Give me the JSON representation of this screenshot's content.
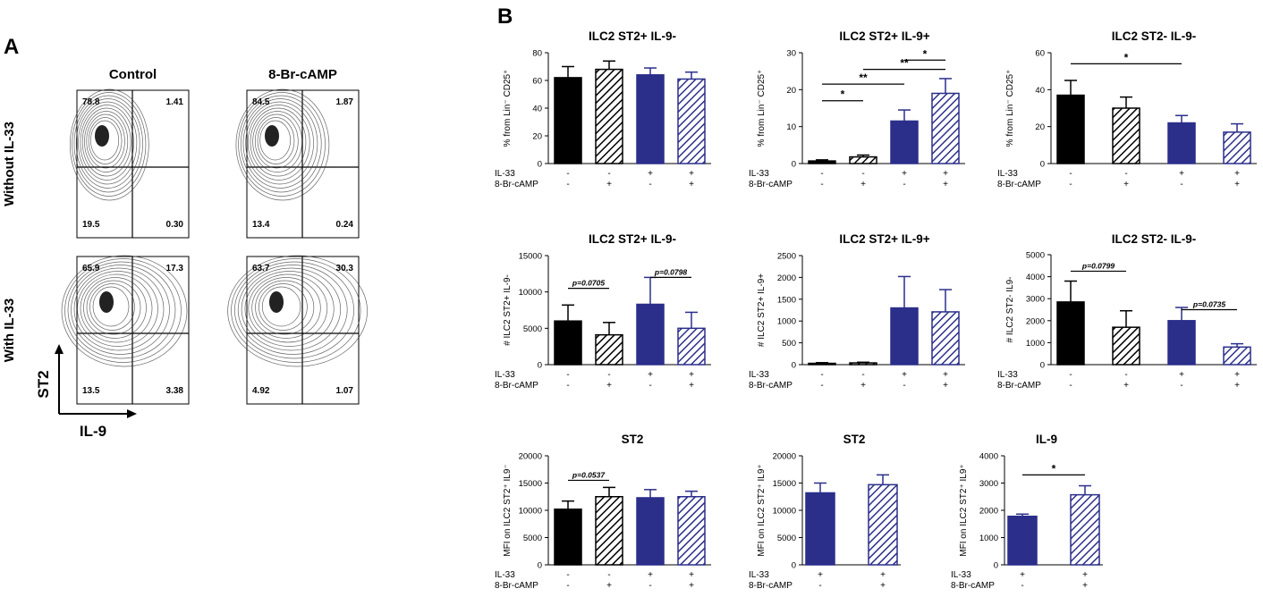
{
  "panel_labels": {
    "a": "A",
    "b": "B"
  },
  "flow": {
    "col_headers": [
      "Control",
      "8-Br-cAMP"
    ],
    "row_labels": [
      "Without IL-33",
      "With IL-33"
    ],
    "axis_y": "ST2",
    "axis_x": "IL-9",
    "plots": [
      {
        "row": 0,
        "col": 0,
        "q": [
          "78.8",
          "1.41",
          "19.5",
          "0.30"
        ]
      },
      {
        "row": 0,
        "col": 1,
        "q": [
          "84.5",
          "1.87",
          "13.4",
          "0.24"
        ]
      },
      {
        "row": 1,
        "col": 0,
        "q": [
          "65.9",
          "17.3",
          "13.5",
          "3.38"
        ]
      },
      {
        "row": 1,
        "col": 1,
        "q": [
          "63.7",
          "30.3",
          "4.92",
          "1.07"
        ]
      }
    ]
  },
  "colors": {
    "black": "#000000",
    "navy": "#2b2f8a"
  },
  "conditions": {
    "il33_label": "IL-33",
    "cbr_label": "8-Br-cAMP",
    "il33_signs": [
      "-",
      "-",
      "+",
      "+"
    ],
    "cbr_signs": [
      "-",
      "+",
      "-",
      "+"
    ],
    "il33_signs_2": [
      "+",
      "+"
    ],
    "cbr_signs_2": [
      "-",
      "+"
    ]
  },
  "chart_data": [
    {
      "type": "bar",
      "title": "ILC2 ST2+ IL-9-",
      "ylabel": "% from Lin⁻ CD25⁺",
      "ylim": [
        0,
        80
      ],
      "ticks": [
        "0",
        "20",
        "40",
        "60",
        "80"
      ],
      "values": [
        62,
        68,
        64,
        61
      ],
      "errors": [
        8,
        6,
        5,
        5
      ],
      "groups": 4,
      "annotations": []
    },
    {
      "type": "bar",
      "title": "ILC2 ST2+ IL-9+",
      "ylabel": "% from Lin⁻ CD25⁺",
      "ylim": [
        0,
        30
      ],
      "ticks": [
        "0",
        "10",
        "20",
        "30"
      ],
      "values": [
        0.7,
        1.8,
        11.5,
        19
      ],
      "errors": [
        0.3,
        0.5,
        3,
        4
      ],
      "groups": 4,
      "annotations": [
        {
          "from": 0,
          "to": 1,
          "y": 17,
          "text": "*",
          "italic": false
        },
        {
          "from": 0,
          "to": 2,
          "y": 21.5,
          "text": "**",
          "italic": false
        },
        {
          "from": 1,
          "to": 3,
          "y": 25.5,
          "text": "**",
          "italic": false
        },
        {
          "from": 2,
          "to": 3,
          "y": 28,
          "text": "*",
          "italic": false
        }
      ]
    },
    {
      "type": "bar",
      "title": "ILC2 ST2- IL-9-",
      "ylabel": "% from Lin⁻ CD25⁺",
      "ylim": [
        0,
        60
      ],
      "ticks": [
        "0",
        "20",
        "40",
        "60"
      ],
      "values": [
        37,
        30,
        22,
        17
      ],
      "errors": [
        8,
        6,
        4,
        4.5
      ],
      "groups": 4,
      "annotations": [
        {
          "from": 0,
          "to": 2,
          "y": 54,
          "text": "*",
          "italic": false
        }
      ]
    },
    {
      "type": "bar",
      "title": "ILC2 ST2+ IL-9-",
      "ylabel": "# ILC2 ST2+ IL-9-",
      "ylim": [
        0,
        15000
      ],
      "ticks": [
        "0",
        "5000",
        "10000",
        "15000"
      ],
      "values": [
        6000,
        4100,
        8300,
        5000
      ],
      "errors": [
        2200,
        1700,
        3700,
        2200
      ],
      "groups": 4,
      "annotations": [
        {
          "from": 0,
          "to": 1,
          "y": 10500,
          "text": "p=0.0705",
          "italic": true
        },
        {
          "from": 2,
          "to": 3,
          "y": 12000,
          "text": "p=0.0798",
          "italic": true
        }
      ]
    },
    {
      "type": "bar",
      "title": "ILC2 ST2+ IL-9+",
      "ylabel": "# ILC2 ST2+ IL-9+",
      "ylim": [
        0,
        2500
      ],
      "ticks": [
        "0",
        "500",
        "1000",
        "1500",
        "2000",
        "2500"
      ],
      "values": [
        30,
        40,
        1300,
        1210
      ],
      "errors": [
        15,
        15,
        720,
        510
      ],
      "groups": 4,
      "annotations": []
    },
    {
      "type": "bar",
      "title": "ILC2 ST2- IL-9-",
      "ylabel": "# ILC2 ST2- IL9-",
      "ylim": [
        0,
        5000
      ],
      "ticks": [
        "0",
        "1000",
        "2000",
        "3000",
        "4000",
        "5000"
      ],
      "values": [
        2850,
        1700,
        2000,
        800
      ],
      "errors": [
        950,
        750,
        600,
        150
      ],
      "groups": 4,
      "annotations": [
        {
          "from": 0,
          "to": 1,
          "y": 4250,
          "text": "p=0.0799",
          "italic": true
        },
        {
          "from": 2,
          "to": 3,
          "y": 2500,
          "text": "p=0.0735",
          "italic": true
        }
      ]
    },
    {
      "type": "bar",
      "title": "ST2",
      "ylabel": "MFI on ILC2 ST2⁺ IL9⁻",
      "ylim": [
        0,
        20000
      ],
      "ticks": [
        "0",
        "5000",
        "10000",
        "15000",
        "20000"
      ],
      "values": [
        10200,
        12500,
        12300,
        12500
      ],
      "errors": [
        1500,
        1700,
        1500,
        1000
      ],
      "groups": 4,
      "annotations": [
        {
          "from": 0,
          "to": 1,
          "y": 15500,
          "text": "p=0.0537",
          "italic": true
        }
      ]
    },
    {
      "type": "bar",
      "title": "ST2",
      "ylabel": "MFI on ILC2 ST2⁺ IL9⁺",
      "ylim": [
        0,
        20000
      ],
      "ticks": [
        "0",
        "5000",
        "10000",
        "15000",
        "20000"
      ],
      "values": [
        13200,
        14700
      ],
      "errors": [
        1800,
        1800
      ],
      "groups": 2,
      "annotations": []
    },
    {
      "type": "bar",
      "title": "IL-9",
      "ylabel": "MFI on ILC2 ST2⁺ IL9⁺",
      "ylim": [
        0,
        4000
      ],
      "ticks": [
        "0",
        "1000",
        "2000",
        "3000",
        "4000"
      ],
      "values": [
        1780,
        2570
      ],
      "errors": [
        80,
        330
      ],
      "groups": 2,
      "annotations": [
        {
          "from": 0,
          "to": 1,
          "y": 3300,
          "text": "*",
          "italic": false
        }
      ]
    }
  ]
}
